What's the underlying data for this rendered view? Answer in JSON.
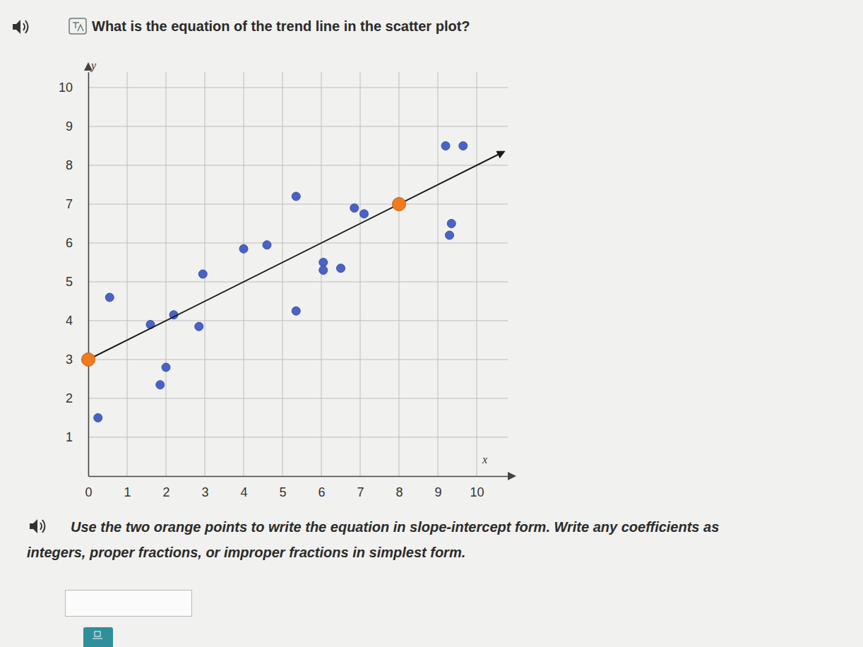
{
  "chart_data": {
    "type": "scatter",
    "title": "What is the equation of the trend line in the scatter plot?",
    "x_label": "x",
    "y_label": "y",
    "annotations": [
      "Use the two orange points to write the equation in slope-intercept form. Write any coefficients as integers, proper fractions, or improper fractions in simplest form."
    ],
    "xlim": [
      0,
      10.8
    ],
    "ylim": [
      0,
      10.4
    ],
    "xticks": [
      0,
      1,
      2,
      3,
      4,
      5,
      6,
      7,
      8,
      9,
      10
    ],
    "yticks": [
      1,
      2,
      3,
      4,
      5,
      6,
      7,
      8,
      9,
      10
    ],
    "grid": true,
    "series": [
      {
        "type": "scatter",
        "color": "#4a62c7",
        "marker": "circle",
        "x": [
          0.25,
          0.55,
          1.6,
          1.85,
          2.0,
          2.2,
          2.85,
          2.95,
          4.0,
          4.6,
          5.35,
          5.35,
          6.05,
          6.05,
          6.5,
          6.85,
          7.1,
          9.2,
          9.65,
          9.35,
          9.3
        ],
        "values": [
          1.5,
          4.6,
          3.9,
          2.35,
          2.8,
          4.15,
          3.85,
          5.2,
          5.85,
          5.95,
          7.2,
          4.25,
          5.5,
          5.3,
          5.35,
          6.9,
          6.75,
          8.5,
          8.5,
          6.5,
          6.2
        ]
      },
      {
        "type": "line",
        "color": "#1a1a1a",
        "marker": "arrow",
        "line_style": "solid",
        "x": [
          0,
          10.7
        ],
        "values": [
          3,
          8.35
        ]
      },
      {
        "type": "scatter",
        "color": "#f07a1e",
        "marker": "circle",
        "x": [
          0,
          8
        ],
        "values": [
          3,
          7
        ]
      }
    ]
  }
}
